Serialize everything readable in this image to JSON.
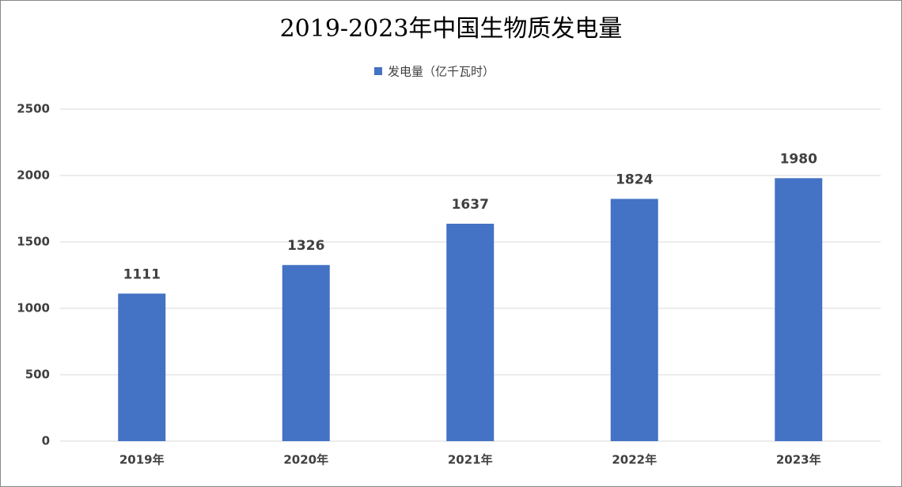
{
  "chart_data": {
    "type": "bar",
    "title": "2019-2023年中国生物质发电量",
    "categories": [
      "2019年",
      "2020年",
      "2021年",
      "2022年",
      "2023年"
    ],
    "series": [
      {
        "name": "发电量（亿千瓦时）",
        "color": "#4472c4",
        "values": [
          1111,
          1326,
          1637,
          1824,
          1980
        ]
      }
    ],
    "ylim": [
      0,
      2500
    ],
    "yticks": [
      0,
      500,
      1000,
      1500,
      2000,
      2500
    ],
    "grid": true,
    "legend": "top"
  }
}
